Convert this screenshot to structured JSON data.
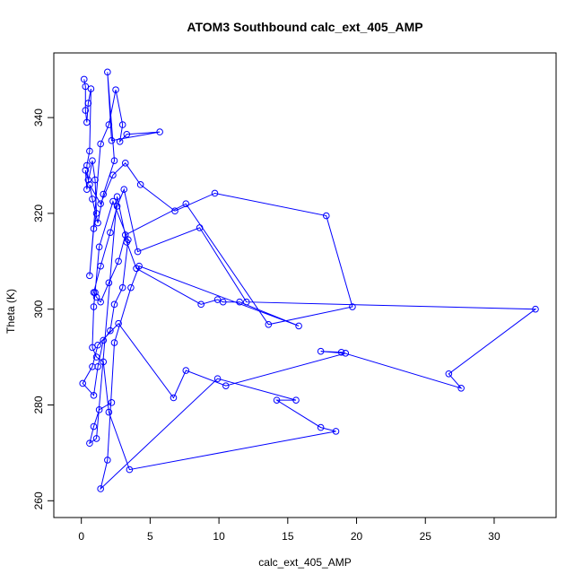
{
  "chart_data": {
    "type": "line",
    "title": "ATOM3 Southbound calc_ext_405_AMP",
    "xlabel": "calc_ext_405_AMP",
    "ylabel": "Theta (K)",
    "xlim": [
      -2,
      34.5
    ],
    "ylim": [
      256.5,
      353.5
    ],
    "x_ticks": [
      0,
      5,
      10,
      15,
      20,
      25,
      30
    ],
    "y_ticks": [
      260,
      280,
      300,
      320,
      340
    ],
    "grid": false,
    "colors": {
      "series": "#0000ff",
      "axes": "#000000",
      "background": "#ffffff"
    },
    "series": [
      {
        "x": [
          0.2,
          0.3,
          0.3,
          0.4,
          0.5,
          0.7,
          0.6,
          0.4,
          0.5,
          0.3,
          0.4,
          0.8,
          1.0,
          1.1,
          0.9,
          0.6,
          1.4,
          2.0,
          2.5,
          3.0,
          2.8,
          3.3,
          5.7,
          2.2,
          1.9,
          2.4,
          1.6,
          1.2,
          0.8,
          0.6,
          1.4,
          2.3,
          3.2,
          4.3,
          6.8,
          9.7,
          17.8,
          19.7,
          13.6,
          7.6,
          3.2,
          2.7,
          2.0,
          1.4,
          1.1,
          0.9,
          1.4,
          2.1,
          2.6,
          3.1,
          4.1,
          8.6,
          12.0,
          33.0,
          26.7,
          27.6,
          18.9,
          17.4,
          19.2,
          10.5,
          7.6,
          6.7,
          2.7,
          1.2,
          0.8,
          0.1,
          0.9,
          1.2,
          1.6,
          2.1,
          2.4,
          3.0,
          3.4,
          2.3,
          1.3,
          1.0,
          0.9,
          0.8,
          1.1,
          1.6,
          2.0,
          3.5,
          18.5,
          17.4,
          14.2,
          15.6,
          9.9,
          1.4,
          1.9,
          2.4,
          3.6,
          4.2,
          15.8,
          11.5,
          10.3,
          9.9,
          8.7,
          4.0,
          3.3,
          2.6,
          1.1,
          0.6,
          0.9,
          1.3,
          2.2
        ],
        "y": [
          348.0,
          346.5,
          341.5,
          339.0,
          343.0,
          346.0,
          333.0,
          330.0,
          327.0,
          329.0,
          325.0,
          331.0,
          327.0,
          320.0,
          316.8,
          307.0,
          334.5,
          338.5,
          345.8,
          338.5,
          335.0,
          336.5,
          337.0,
          335.2,
          349.5,
          331.0,
          324.0,
          318.0,
          323.0,
          326.0,
          322.0,
          328.0,
          330.5,
          326.0,
          320.5,
          324.2,
          319.5,
          300.5,
          296.8,
          322.0,
          315.5,
          310.0,
          305.5,
          301.5,
          302.5,
          303.5,
          309.0,
          316.0,
          321.5,
          325.0,
          312.0,
          317.0,
          301.5,
          300.0,
          286.5,
          283.5,
          291.0,
          291.2,
          290.8,
          284.0,
          287.2,
          281.5,
          297.0,
          292.5,
          288.0,
          284.5,
          282.0,
          288.0,
          293.5,
          295.5,
          301.0,
          304.5,
          314.5,
          322.5,
          313.0,
          303.5,
          300.5,
          292.0,
          290.0,
          289.0,
          278.5,
          266.5,
          274.5,
          275.3,
          281.0,
          281.0,
          285.5,
          262.5,
          268.5,
          293.0,
          304.5,
          309.0,
          296.5,
          301.5,
          301.5,
          302.0,
          301.0,
          308.5,
          314.0,
          323.5,
          273.0,
          272.0,
          275.5,
          279.0,
          280.5
        ]
      }
    ]
  }
}
